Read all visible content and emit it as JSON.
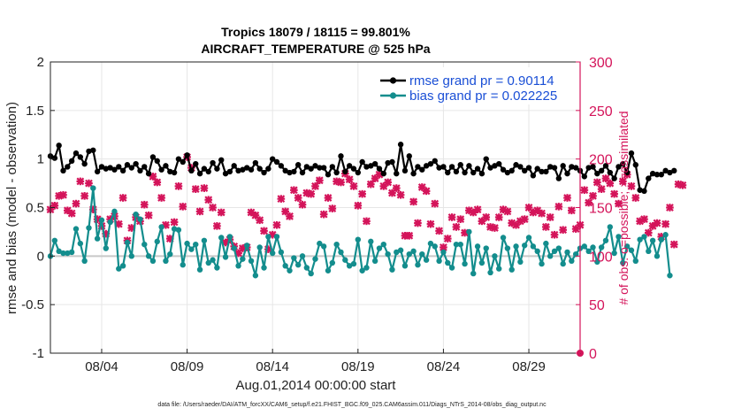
{
  "chart_data": {
    "type": "line",
    "title_line1": "Tropics 18079 / 18115 = 99.801%",
    "title_line2": "AIRCRAFT_TEMPERATURE @ 525 hPa",
    "xlabel": "Aug.01,2014 00:00:00 start",
    "ylabel_left": "rmse and bias (model - observation)",
    "ylabel_right": "# of obs: o=possible; ×=assimilated",
    "footer": "data file: /Users/raeder/DAI/ATM_forcXX/CAM6_setup/f.e21.FHIST_BGC.f09_025.CAM6assim.011/Diags_NTrS_2014-08/obs_diag_output.nc",
    "xlim": [
      1,
      32
    ],
    "ylim_left": [
      -1,
      2
    ],
    "ylim_right": [
      0,
      300
    ],
    "x_ticks": [
      4,
      9,
      14,
      19,
      24,
      29
    ],
    "x_tick_labels": [
      "08/04",
      "08/09",
      "08/14",
      "08/19",
      "08/24",
      "08/29"
    ],
    "y_ticks_left": [
      -1,
      -0.5,
      0,
      0.5,
      1,
      1.5,
      2
    ],
    "y_tick_labels_left": [
      "-1",
      "-0.5",
      "0",
      "0.5",
      "1",
      "1.5",
      "2"
    ],
    "y_ticks_right": [
      0,
      50,
      100,
      150,
      200,
      250,
      300
    ],
    "y_tick_labels_right": [
      "0",
      "50",
      "100",
      "150",
      "200",
      "250",
      "300"
    ],
    "grid": true,
    "legend_position": "top-right",
    "x_step_days": 0.25,
    "series": [
      {
        "name": "rmse",
        "legend": "rmse grand pr = 0.90114",
        "color": "#000000",
        "values": [
          1.03,
          1.01,
          1.14,
          0.88,
          0.92,
          0.98,
          1.06,
          1.02,
          0.95,
          1.08,
          1.09,
          0.87,
          0.92,
          0.9,
          0.91,
          0.89,
          0.92,
          0.88,
          0.94,
          0.91,
          0.95,
          0.88,
          0.92,
          0.85,
          1.02,
          0.98,
          0.89,
          0.93,
          0.87,
          0.86,
          1.0,
          0.97,
          1.04,
          0.88,
          0.95,
          0.85,
          0.9,
          0.87,
          0.96,
          0.9,
          0.99,
          0.85,
          0.87,
          0.93,
          0.88,
          0.89,
          0.91,
          0.89,
          0.96,
          0.9,
          0.86,
          0.9,
          1.0,
          0.97,
          0.93,
          0.88,
          0.86,
          0.87,
          0.94,
          0.86,
          0.92,
          0.9,
          0.93,
          0.91,
          0.91,
          0.84,
          0.92,
          0.86,
          1.03,
          0.87,
          0.93,
          0.9,
          0.86,
          0.97,
          0.92,
          0.93,
          0.95,
          0.9,
          0.85,
          0.96,
          0.97,
          0.85,
          1.15,
          0.88,
          1.03,
          0.85,
          0.92,
          0.89,
          0.93,
          0.95,
          0.98,
          0.91,
          0.92,
          0.86,
          0.92,
          0.87,
          0.94,
          0.86,
          0.93,
          0.86,
          0.9,
          0.85,
          1.0,
          0.91,
          0.93,
          0.95,
          0.89,
          0.86,
          0.88,
          0.94,
          0.92,
          0.88,
          0.91,
          0.83,
          0.9,
          0.87,
          0.87,
          0.92,
          0.91,
          0.8,
          0.93,
          0.85,
          0.92,
          0.91,
          0.88,
          0.82,
          0.91,
          0.92,
          0.85,
          0.88,
          0.93,
          0.86,
          0.8,
          0.92,
          0.95,
          0.86,
          1.06,
          0.94,
          0.68,
          0.67,
          0.8,
          0.85,
          0.84,
          0.84,
          0.88,
          0.86,
          0.88
        ]
      },
      {
        "name": "bias",
        "legend": "bias grand pr = 0.022225",
        "color": "#138d8d",
        "values": [
          0.0,
          0.16,
          0.05,
          0.03,
          0.03,
          0.04,
          0.28,
          0.13,
          -0.05,
          0.29,
          0.7,
          0.18,
          0.37,
          0.08,
          0.35,
          0.46,
          -0.13,
          -0.1,
          0.14,
          0.0,
          0.43,
          0.38,
          0.12,
          0.0,
          -0.05,
          0.15,
          0.3,
          -0.05,
          0.02,
          0.28,
          0.27,
          -0.09,
          0.13,
          0.07,
          0.12,
          -0.14,
          0.16,
          -0.07,
          -0.04,
          -0.12,
          0.19,
          -0.01,
          0.2,
          0.08,
          -0.1,
          -0.03,
          0.11,
          -0.05,
          -0.2,
          0.09,
          -0.12,
          0.2,
          0.03,
          0.2,
          0.04,
          -0.1,
          -0.15,
          -0.02,
          -0.09,
          0.0,
          -0.12,
          -0.18,
          -0.03,
          0.13,
          0.1,
          -0.15,
          -0.07,
          0.12,
          0.04,
          -0.04,
          -0.1,
          -0.08,
          0.17,
          -0.15,
          -0.12,
          0.15,
          -0.05,
          0.08,
          0.12,
          0.02,
          -0.14,
          0.04,
          0.06,
          -0.1,
          0.02,
          0.05,
          -0.09,
          0.02,
          -0.04,
          0.13,
          0.1,
          -0.05,
          0.04,
          -0.07,
          -0.12,
          0.12,
          0.12,
          -0.08,
          0.25,
          -0.18,
          0.1,
          -0.07,
          0.08,
          -0.17,
          0.0,
          -0.13,
          0.19,
          0.08,
          -0.14,
          0.1,
          -0.06,
          0.11,
          0.19,
          0.1,
          0.05,
          -0.08,
          0.13,
          0.0,
          0.05,
          0.08,
          -0.08,
          0.04,
          -0.05,
          0.02,
          0.08,
          0.1,
          0.05,
          0.09,
          -0.06,
          0.09,
          0.16,
          0.3,
          0.03,
          0.2,
          -0.07,
          0.1,
          0.06,
          -0.05,
          0.17,
          0.2,
          0.05,
          0.16,
          0.0,
          0.17,
          0.22,
          -0.2
        ]
      },
      {
        "name": "obs_count",
        "legend": "",
        "color": "#d4145a",
        "axis": "right",
        "values": [
          148,
          152,
          162,
          163,
          147,
          144,
          154,
          177,
          162,
          175,
          148,
          138,
          131,
          123,
          138,
          141,
          133,
          160,
          116,
          129,
          140,
          136,
          153,
          142,
          182,
          176,
          160,
          132,
          118,
          135,
          172,
          151,
          202,
          191,
          169,
          146,
          170,
          158,
          150,
          131,
          145,
          114,
          117,
          110,
          103,
          108,
          109,
          145,
          142,
          137,
          126,
          107,
          122,
          132,
          159,
          146,
          141,
          168,
          160,
          153,
          165,
          164,
          172,
          178,
          143,
          160,
          149,
          177,
          176,
          185,
          179,
          172,
          152,
          164,
          136,
          174,
          180,
          184,
          172,
          176,
          165,
          170,
          163,
          121,
          121,
          156,
          134,
          171,
          167,
          133,
          154,
          126,
          109,
          118,
          140,
          130,
          138,
          124,
          147,
          145,
          148,
          136,
          140,
          130,
          129,
          140,
          148,
          146,
          134,
          132,
          136,
          138,
          150,
          145,
          147,
          144,
          130,
          140,
          122,
          151,
          127,
          160,
          147,
          128,
          132,
          168,
          155,
          162,
          176,
          169,
          180,
          175,
          164,
          154,
          177,
          184,
          172,
          160,
          136,
          138,
          124,
          131,
          134,
          120,
          133,
          150,
          112,
          174,
          173
        ]
      }
    ]
  }
}
